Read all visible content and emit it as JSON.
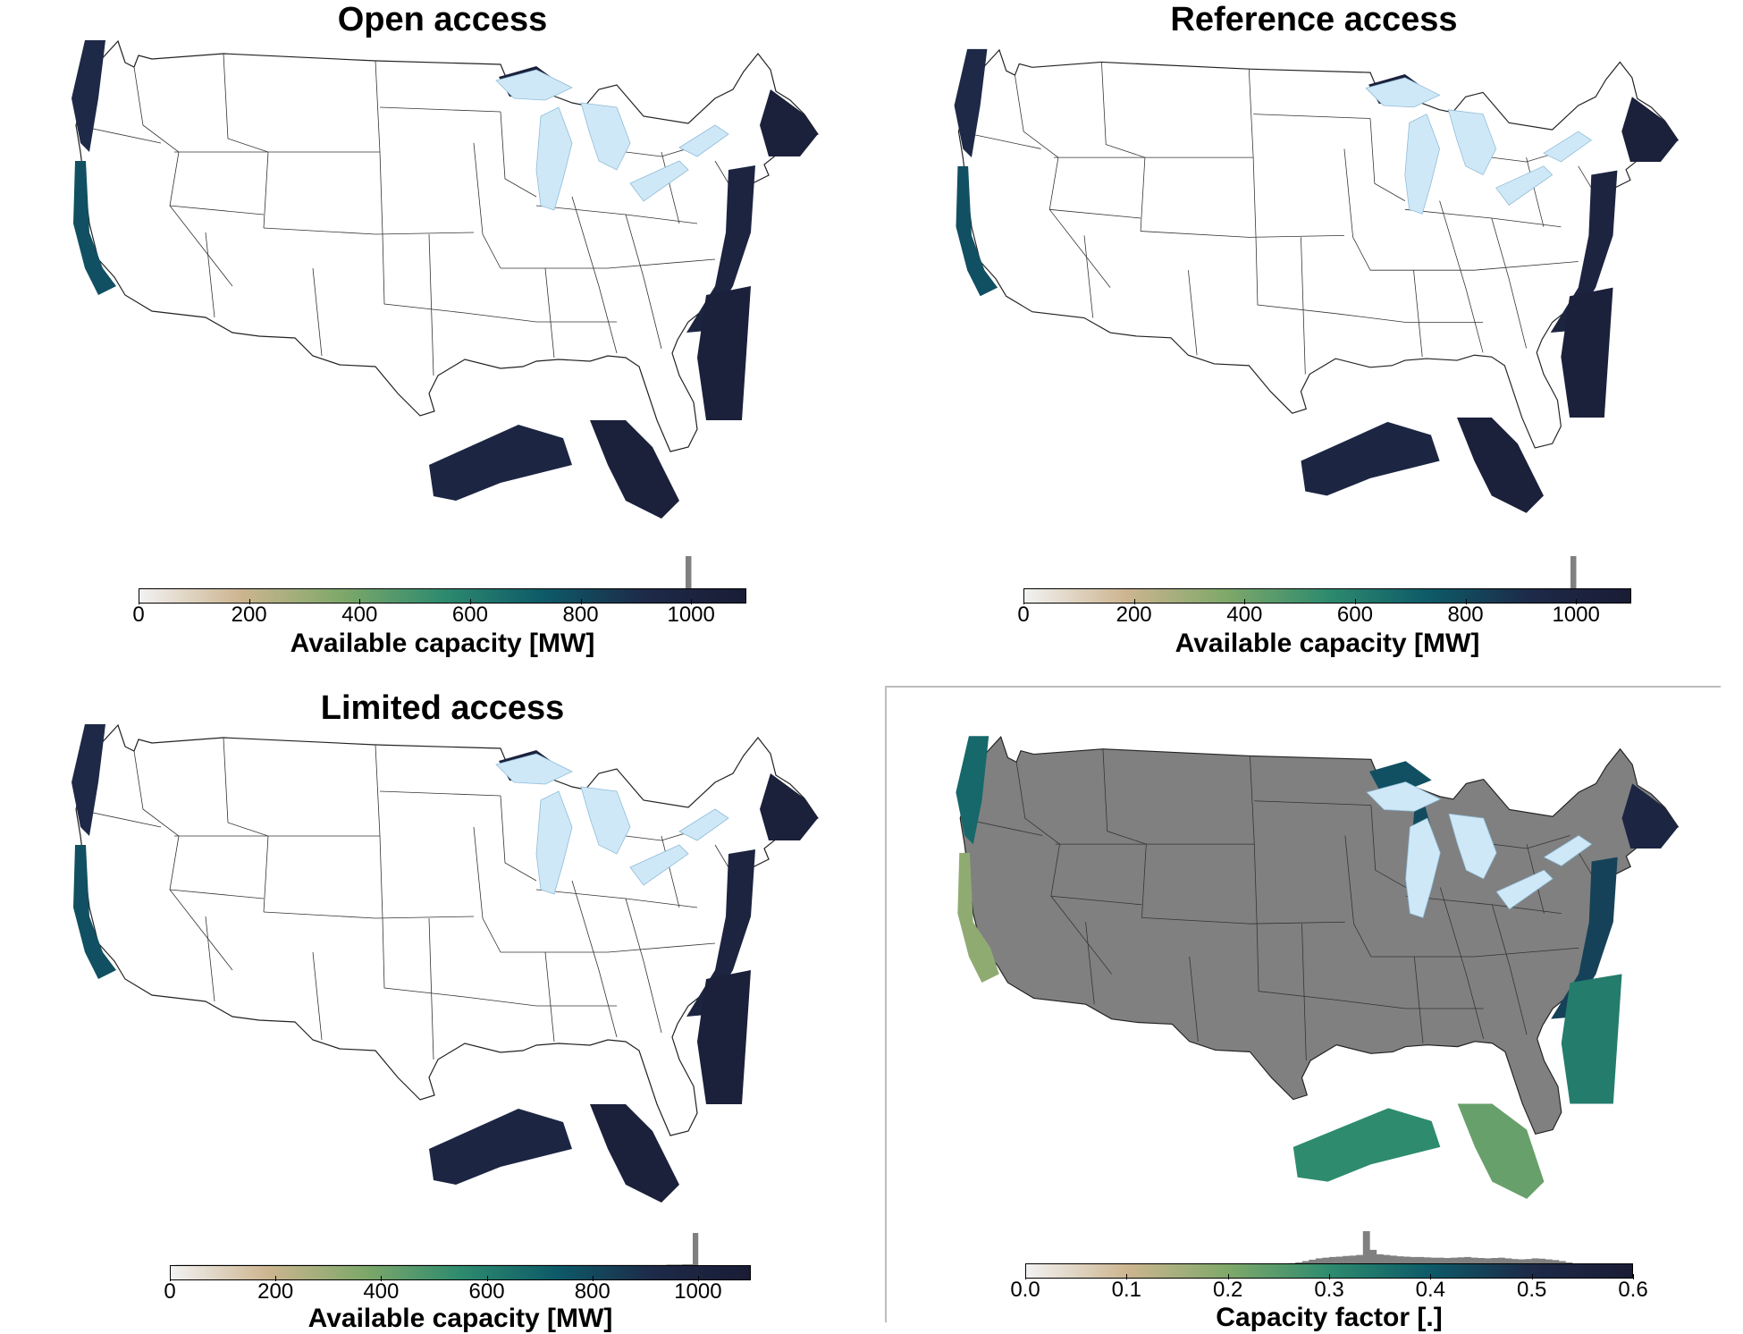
{
  "panels": [
    {
      "id": "open",
      "title": "Open access",
      "land_fill": "#ffffff",
      "colorbar": {
        "label": "Available capacity [MW]",
        "ticks": [
          "0",
          "200",
          "400",
          "600",
          "800",
          "1000"
        ],
        "tick_values": [
          0,
          200,
          400,
          600,
          800,
          1000
        ],
        "range": [
          0,
          1100
        ],
        "colors": [
          "#f2f2f2",
          "#cdb590",
          "#7fa86a",
          "#2e8b6e",
          "#0d5a68",
          "#1d2a48",
          "#1a1c35"
        ],
        "histogram": [
          0,
          0,
          0,
          0,
          0,
          0,
          0,
          0,
          0,
          0,
          0,
          0,
          0,
          0,
          0,
          0,
          0,
          0,
          0,
          0,
          0,
          0,
          0,
          0,
          0,
          0,
          0,
          0,
          0,
          0,
          0,
          0,
          0,
          0,
          0,
          0,
          0,
          0,
          0,
          0,
          0,
          0,
          0,
          0,
          0,
          0,
          0,
          0,
          0,
          0,
          0,
          0,
          0,
          0,
          0,
          0,
          0,
          0,
          0,
          0,
          0,
          0,
          0,
          0,
          0,
          0,
          0,
          0,
          0,
          0,
          0,
          0,
          0,
          0,
          0,
          0,
          0,
          0,
          0,
          0,
          0,
          0,
          0,
          0,
          0,
          0,
          0,
          0,
          0,
          0,
          0,
          0,
          0.01,
          0.01,
          0.02,
          0.02,
          0.02,
          0.02,
          0.03,
          1,
          0,
          0,
          0,
          0,
          0,
          0,
          0,
          0,
          0,
          0
        ]
      }
    },
    {
      "id": "reference",
      "title": "Reference access",
      "land_fill": "#ffffff",
      "colorbar": {
        "label": "Available capacity [MW]",
        "ticks": [
          "0",
          "200",
          "400",
          "600",
          "800",
          "1000"
        ],
        "tick_values": [
          0,
          200,
          400,
          600,
          800,
          1000
        ],
        "range": [
          0,
          1100
        ],
        "colors": [
          "#f2f2f2",
          "#cdb590",
          "#7fa86a",
          "#2e8b6e",
          "#0d5a68",
          "#1d2a48",
          "#1a1c35"
        ],
        "histogram": [
          0.02,
          0.03,
          0.03,
          0.02,
          0.02,
          0.02,
          0.02,
          0.02,
          0.02,
          0.02,
          0.02,
          0.02,
          0.02,
          0.02,
          0.02,
          0.02,
          0.02,
          0.02,
          0.02,
          0.02,
          0.02,
          0.02,
          0.02,
          0.02,
          0.02,
          0.02,
          0.02,
          0.02,
          0.02,
          0.02,
          0.02,
          0.02,
          0.02,
          0.02,
          0.02,
          0.02,
          0.02,
          0.02,
          0.02,
          0.02,
          0.02,
          0.02,
          0.02,
          0.02,
          0.02,
          0.02,
          0.02,
          0.02,
          0.02,
          0.02,
          0.02,
          0.02,
          0.02,
          0.02,
          0.02,
          0.02,
          0.02,
          0.02,
          0.02,
          0.02,
          0.02,
          0.02,
          0.02,
          0.02,
          0.02,
          0.02,
          0.02,
          0.02,
          0.02,
          0.02,
          0.02,
          0.02,
          0.02,
          0.02,
          0.02,
          0.02,
          0.02,
          0.02,
          0.02,
          0.02,
          0.02,
          0.02,
          0.02,
          0.02,
          0.02,
          0.02,
          0.02,
          0.02,
          0.02,
          0.02,
          0.02,
          0.02,
          0.02,
          0.02,
          0.02,
          0.02,
          0.02,
          0.02,
          0.03,
          1,
          0,
          0,
          0,
          0,
          0,
          0,
          0,
          0,
          0,
          0
        ]
      }
    },
    {
      "id": "limited",
      "title": "Limited access",
      "land_fill": "#ffffff",
      "colorbar": {
        "label": "Available capacity [MW]",
        "ticks": [
          "0",
          "200",
          "400",
          "600",
          "800",
          "1000"
        ],
        "tick_values": [
          0,
          200,
          400,
          600,
          800,
          1000
        ],
        "range": [
          0,
          1100
        ],
        "colors": [
          "#f2f2f2",
          "#cdb590",
          "#7fa86a",
          "#2e8b6e",
          "#0d5a68",
          "#1d2a48",
          "#1a1c35"
        ],
        "histogram": [
          0.05,
          0.06,
          0.06,
          0.06,
          0.06,
          0.06,
          0.06,
          0.06,
          0.06,
          0.06,
          0.06,
          0.06,
          0.06,
          0.06,
          0.06,
          0.06,
          0.06,
          0.06,
          0.06,
          0.06,
          0.06,
          0.06,
          0.06,
          0.06,
          0.06,
          0.06,
          0.06,
          0.06,
          0.06,
          0.06,
          0.06,
          0.06,
          0.06,
          0.06,
          0.06,
          0.06,
          0.06,
          0.06,
          0.06,
          0.06,
          0.06,
          0.06,
          0.06,
          0.06,
          0.06,
          0.06,
          0.06,
          0.06,
          0.06,
          0.06,
          0.06,
          0.06,
          0.06,
          0.06,
          0.06,
          0.06,
          0.06,
          0.06,
          0.06,
          0.06,
          0.06,
          0.06,
          0.06,
          0.06,
          0.06,
          0.06,
          0.06,
          0.06,
          0.06,
          0.06,
          0.06,
          0.06,
          0.06,
          0.06,
          0.06,
          0.06,
          0.06,
          0.06,
          0.06,
          0.06,
          0.06,
          0.06,
          0.06,
          0.06,
          0.06,
          0.06,
          0.06,
          0.06,
          0.06,
          0.06,
          0.06,
          0.06,
          0.06,
          0.06,
          0.07,
          0.07,
          0.07,
          0.08,
          0.08,
          1,
          0,
          0,
          0,
          0,
          0,
          0,
          0,
          0,
          0,
          0
        ]
      }
    },
    {
      "id": "capacity-factor",
      "title": "",
      "land_fill": "#808080",
      "colorbar": {
        "label": "Capacity factor [.]",
        "ticks": [
          "0.0",
          "0.1",
          "0.2",
          "0.3",
          "0.4",
          "0.5",
          "0.6"
        ],
        "tick_values": [
          0,
          0.1,
          0.2,
          0.3,
          0.4,
          0.5,
          0.6
        ],
        "range": [
          0,
          0.6
        ],
        "colors": [
          "#f2f2f2",
          "#cdb590",
          "#7fa86a",
          "#2e8b6e",
          "#0d5a68",
          "#1d2a48",
          "#1a1c35"
        ],
        "histogram": [
          0,
          0,
          0,
          0,
          0,
          0,
          0,
          0,
          0,
          0,
          0,
          0,
          0,
          0,
          0,
          0,
          0,
          0,
          0,
          0,
          0,
          0,
          0,
          0,
          0,
          0,
          0,
          0,
          0.01,
          0.01,
          0.01,
          0.01,
          0.02,
          0.02,
          0.02,
          0.03,
          0.03,
          0.04,
          0.05,
          0.06,
          0.08,
          0.12,
          0.16,
          0.2,
          0.22,
          0.24,
          0.25,
          0.27,
          0.28,
          0.3,
          1,
          0.45,
          0.32,
          0.3,
          0.28,
          0.26,
          0.25,
          0.24,
          0.24,
          0.23,
          0.22,
          0.22,
          0.21,
          0.22,
          0.23,
          0.24,
          0.22,
          0.21,
          0.2,
          0.21,
          0.22,
          0.2,
          0.18,
          0.17,
          0.18,
          0.2,
          0.19,
          0.17,
          0.15,
          0.12,
          0.08,
          0.04,
          0.02,
          0,
          0,
          0,
          0,
          0,
          0,
          0
        ]
      }
    }
  ]
}
